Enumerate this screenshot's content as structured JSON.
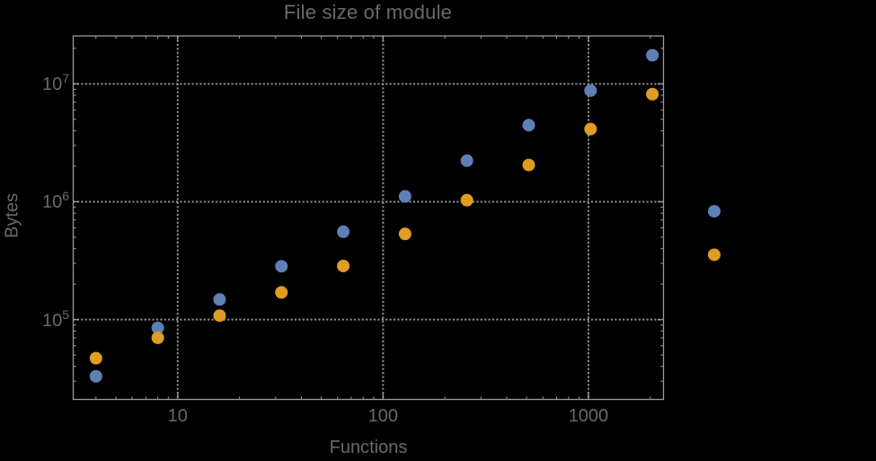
{
  "colors": {
    "background": "#000000",
    "text": "#696969",
    "frame": "#9b9b9b",
    "grid": "#8e8e8e",
    "series_blue": "#5e81b5",
    "series_orange": "#e19c24"
  },
  "chart_data": {
    "type": "scatter",
    "title": "File size of module",
    "xlabel": "Functions",
    "ylabel": "Bytes",
    "x_scale": "log",
    "y_scale": "log",
    "grid": "dotted",
    "legend": "none",
    "frame": true,
    "marker_diameter_px": 14,
    "xlim": [
      3.1,
      2320
    ],
    "ylim": [
      21000,
      25500000
    ],
    "x_ticks": [
      10,
      100,
      1000
    ],
    "x_tick_labels": [
      "10",
      "100",
      "1000"
    ],
    "y_ticks": [
      100000,
      1000000,
      10000000
    ],
    "y_tick_labels": [
      {
        "base": "10",
        "exp": "5"
      },
      {
        "base": "10",
        "exp": "6"
      },
      {
        "base": "10",
        "exp": "7"
      }
    ],
    "x": [
      4,
      8,
      16,
      32,
      64,
      128,
      256,
      512,
      1024,
      2048,
      4096
    ],
    "series": [
      {
        "name": "blue",
        "color": "#5e81b5",
        "values": [
          33000,
          85000,
          148000,
          283000,
          556000,
          1110000,
          2230000,
          4460000,
          8770000,
          17500000,
          830000
        ]
      },
      {
        "name": "orange",
        "color": "#e19c24",
        "values": [
          47000,
          70000,
          108000,
          170000,
          285000,
          533000,
          1030000,
          2050000,
          4130000,
          8180000,
          355000
        ]
      }
    ],
    "clip_points_to_frame": false
  }
}
